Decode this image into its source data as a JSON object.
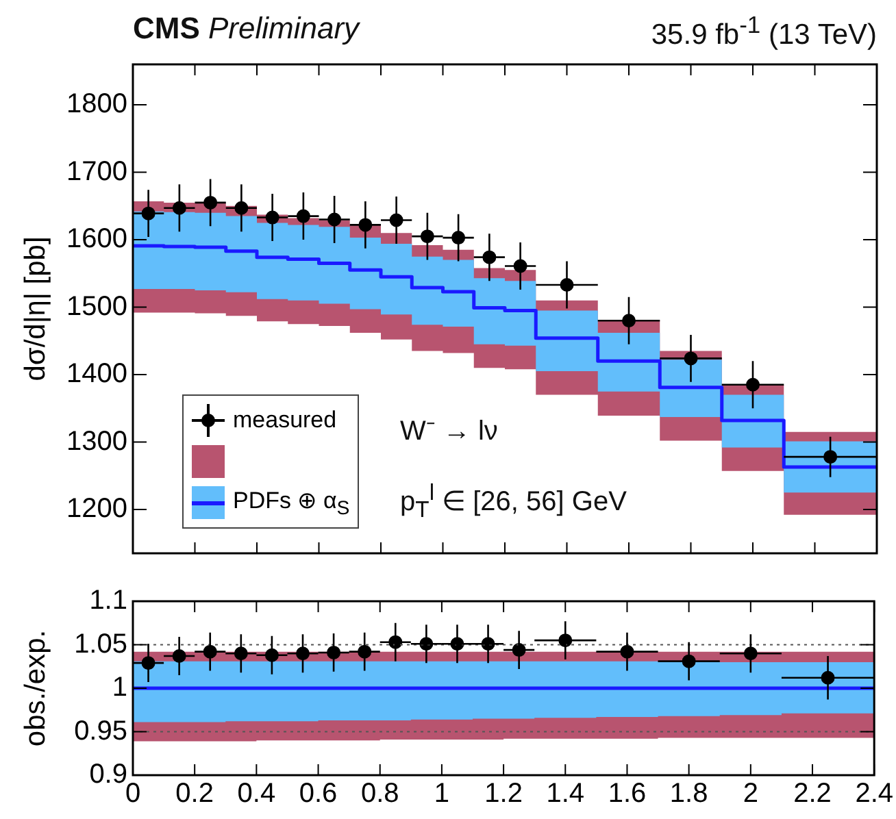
{
  "chart_data": [
    {
      "type": "scatter",
      "title": "CMS Preliminary",
      "subtitle": "35.9 fb$^{-1}$ (13 TeV)",
      "ylabel": "dσ/d|η| [pb]",
      "annotations": [
        "W⁻ → lν",
        "p$_{T}$$^{l}$ ∈ [26,  56] GeV"
      ],
      "x": [
        0.05,
        0.15,
        0.25,
        0.35,
        0.45,
        0.55,
        0.65,
        0.75,
        0.85,
        0.95,
        1.05,
        1.15,
        1.25,
        1.4,
        1.6,
        1.8,
        2.0,
        2.25
      ],
      "series": [
        {
          "name": "measured",
          "type": "scatter",
          "marker": "circle",
          "color": "#000000",
          "values": [
            1639,
            1647,
            1655,
            1647,
            1633,
            1635,
            1630,
            1622,
            1629,
            1605,
            1603,
            1574,
            1561,
            1533,
            1480,
            1424,
            1385,
            1278
          ],
          "errors": [
            35,
            35,
            35,
            35,
            35,
            35,
            35,
            35,
            35,
            35,
            35,
            35,
            35,
            35,
            35,
            35,
            35,
            30
          ],
          "xerrors": [
            0.05,
            0.05,
            0.05,
            0.05,
            0.05,
            0.05,
            0.05,
            0.05,
            0.05,
            0.05,
            0.05,
            0.05,
            0.05,
            0.1,
            0.1,
            0.1,
            0.1,
            0.15
          ]
        },
        {
          "type": "step",
          "marker": "none",
          "color": "#b8546f",
          "x": [
            0,
            0.1,
            0.2,
            0.3,
            0.4,
            0.5,
            0.6,
            0.7,
            0.8,
            0.9,
            1.0,
            1.1,
            1.2,
            1.3,
            1.5,
            1.7,
            1.9,
            2.1,
            2.4
          ],
          "values": [
            null,
            null,
            null,
            null,
            null,
            null,
            null,
            null,
            null,
            null,
            null,
            null,
            null,
            null,
            null,
            null,
            null,
            null,
            null
          ],
          "upper": [
            1657,
            1655,
            1654,
            1650,
            1637,
            1632,
            1629,
            1622,
            1610,
            1592,
            1585,
            1558,
            1555,
            1510,
            1481,
            1435,
            1385,
            1315,
            1315
          ],
          "lower": [
            1492,
            1492,
            1491,
            1487,
            1479,
            1475,
            1472,
            1462,
            1452,
            1435,
            1432,
            1410,
            1408,
            1370,
            1339,
            1302,
            1257,
            1192,
            1192
          ]
        },
        {
          "type": "step",
          "marker": "none",
          "color": "#62befb",
          "x": [
            0,
            0.1,
            0.2,
            0.3,
            0.4,
            0.5,
            0.6,
            0.7,
            0.8,
            0.9,
            1.0,
            1.1,
            1.2,
            1.3,
            1.5,
            1.7,
            1.9,
            2.1,
            2.4
          ],
          "values": [
            null,
            null,
            null,
            null,
            null,
            null,
            null,
            null,
            null,
            null,
            null,
            null,
            null,
            null,
            null,
            null,
            null,
            null,
            null
          ],
          "upper": [
            1642,
            1641,
            1640,
            1635,
            1625,
            1622,
            1619,
            1603,
            1594,
            1575,
            1570,
            1543,
            1539,
            1495,
            1462,
            1422,
            1370,
            1301,
            1301
          ],
          "lower": [
            1527,
            1527,
            1525,
            1522,
            1512,
            1510,
            1505,
            1497,
            1489,
            1474,
            1471,
            1445,
            1443,
            1405,
            1375,
            1337,
            1292,
            1225,
            1225
          ]
        },
        {
          "name": "PDFs ⊕ α$_{S}$",
          "type": "step",
          "marker": "none",
          "color": "#1a1aff",
          "x": [
            0,
            0.1,
            0.2,
            0.3,
            0.4,
            0.5,
            0.6,
            0.7,
            0.8,
            0.9,
            1.0,
            1.1,
            1.2,
            1.3,
            1.5,
            1.7,
            1.9,
            2.1,
            2.4
          ],
          "values": [
            1591,
            1590,
            1589,
            1583,
            1574,
            1571,
            1565,
            1555,
            1545,
            1529,
            1523,
            1499,
            1495,
            1454,
            1420,
            1381,
            1332,
            1263,
            1263
          ]
        }
      ],
      "xlim": [
        0,
        2.4
      ],
      "xticks": [
        0,
        0.2,
        0.4,
        0.6,
        0.8,
        1,
        1.2,
        1.4,
        1.6,
        1.8,
        2,
        2.2,
        2.4
      ],
      "ylim": [
        1135,
        1860
      ],
      "yticks": [
        1200,
        1300,
        1400,
        1500,
        1600,
        1700,
        1800
      ],
      "tick_labels": "y",
      "grid": false,
      "legend": "bottom left"
    },
    {
      "type": "scatter",
      "ylabel": "obs./exp.",
      "x": [
        0.05,
        0.15,
        0.25,
        0.35,
        0.45,
        0.55,
        0.65,
        0.75,
        0.85,
        0.95,
        1.05,
        1.15,
        1.25,
        1.4,
        1.6,
        1.8,
        2.0,
        2.25
      ],
      "series": [
        {
          "type": "scatter",
          "marker": "circle",
          "color": "#000000",
          "values": [
            1.029,
            1.037,
            1.042,
            1.04,
            1.038,
            1.04,
            1.041,
            1.042,
            1.053,
            1.051,
            1.051,
            1.051,
            1.044,
            1.055,
            1.042,
            1.031,
            1.04,
            1.012
          ],
          "errors": [
            0.022,
            0.022,
            0.022,
            0.022,
            0.022,
            0.022,
            0.022,
            0.022,
            0.022,
            0.022,
            0.022,
            0.022,
            0.022,
            0.022,
            0.022,
            0.022,
            0.022,
            0.025
          ],
          "xerrors": [
            0.05,
            0.05,
            0.05,
            0.05,
            0.05,
            0.05,
            0.05,
            0.05,
            0.05,
            0.05,
            0.05,
            0.05,
            0.05,
            0.1,
            0.1,
            0.1,
            0.1,
            0.15
          ]
        },
        {
          "type": "step",
          "marker": "none",
          "color": "#b8546f",
          "x": [
            0,
            0.1,
            0.2,
            0.3,
            0.4,
            0.5,
            0.6,
            0.7,
            0.8,
            0.9,
            1.0,
            1.1,
            1.2,
            1.3,
            1.5,
            1.7,
            1.9,
            2.1,
            2.4
          ],
          "values": [
            null,
            null,
            null,
            null,
            null,
            null,
            null,
            null,
            null,
            null,
            null,
            null,
            null,
            null,
            null,
            null,
            null,
            null,
            null
          ],
          "upper": [
            1.042,
            1.042,
            1.042,
            1.042,
            1.042,
            1.042,
            1.042,
            1.042,
            1.042,
            1.042,
            1.042,
            1.042,
            1.042,
            1.042,
            1.042,
            1.042,
            1.042,
            1.042,
            1.042
          ],
          "lower": [
            0.939,
            0.939,
            0.939,
            0.939,
            0.94,
            0.94,
            0.94,
            0.94,
            0.941,
            0.941,
            0.941,
            0.941,
            0.942,
            0.942,
            0.942,
            0.943,
            0.943,
            0.943,
            0.943
          ]
        },
        {
          "type": "step",
          "marker": "none",
          "color": "#62befb",
          "x": [
            0,
            0.1,
            0.2,
            0.3,
            0.4,
            0.5,
            0.6,
            0.7,
            0.8,
            0.9,
            1.0,
            1.1,
            1.2,
            1.3,
            1.5,
            1.7,
            1.9,
            2.1,
            2.4
          ],
          "values": [
            null,
            null,
            null,
            null,
            null,
            null,
            null,
            null,
            null,
            null,
            null,
            null,
            null,
            null,
            null,
            null,
            null,
            null,
            null
          ],
          "upper": [
            1.031,
            1.031,
            1.031,
            1.031,
            1.031,
            1.031,
            1.031,
            1.031,
            1.031,
            1.031,
            1.031,
            1.031,
            1.031,
            1.031,
            1.031,
            1.03,
            1.03,
            1.03,
            1.03
          ],
          "lower": [
            0.961,
            0.961,
            0.961,
            0.962,
            0.962,
            0.962,
            0.963,
            0.963,
            0.963,
            0.964,
            0.964,
            0.965,
            0.965,
            0.966,
            0.967,
            0.968,
            0.969,
            0.971,
            0.971
          ]
        },
        {
          "type": "step",
          "marker": "none",
          "color": "#1a1aff",
          "x": [
            0,
            0.1,
            0.2,
            0.3,
            0.4,
            0.5,
            0.6,
            0.7,
            0.8,
            0.9,
            1.0,
            1.1,
            1.2,
            1.3,
            1.5,
            1.7,
            1.9,
            2.1,
            2.4
          ],
          "values": [
            1,
            1,
            1,
            1,
            1,
            1,
            1,
            1,
            1,
            1,
            1,
            1,
            1,
            1,
            1,
            1,
            1,
            1,
            1
          ]
        }
      ],
      "ref_lines": [
        {
          "axis": "y",
          "value": 1.05,
          "color": "#555555",
          "line_style": "dotted"
        },
        {
          "axis": "y",
          "value": 0.95,
          "color": "#555555",
          "line_style": "dotted"
        }
      ],
      "xlim": [
        0,
        2.4
      ],
      "xticks": [
        0,
        0.2,
        0.4,
        0.6,
        0.8,
        1,
        1.2,
        1.4,
        1.6,
        1.8,
        2,
        2.2,
        2.4
      ],
      "ylim": [
        0.9,
        1.1
      ],
      "yticks": [
        0.9,
        0.95,
        1,
        1.05,
        1.1
      ],
      "grid": false
    }
  ]
}
